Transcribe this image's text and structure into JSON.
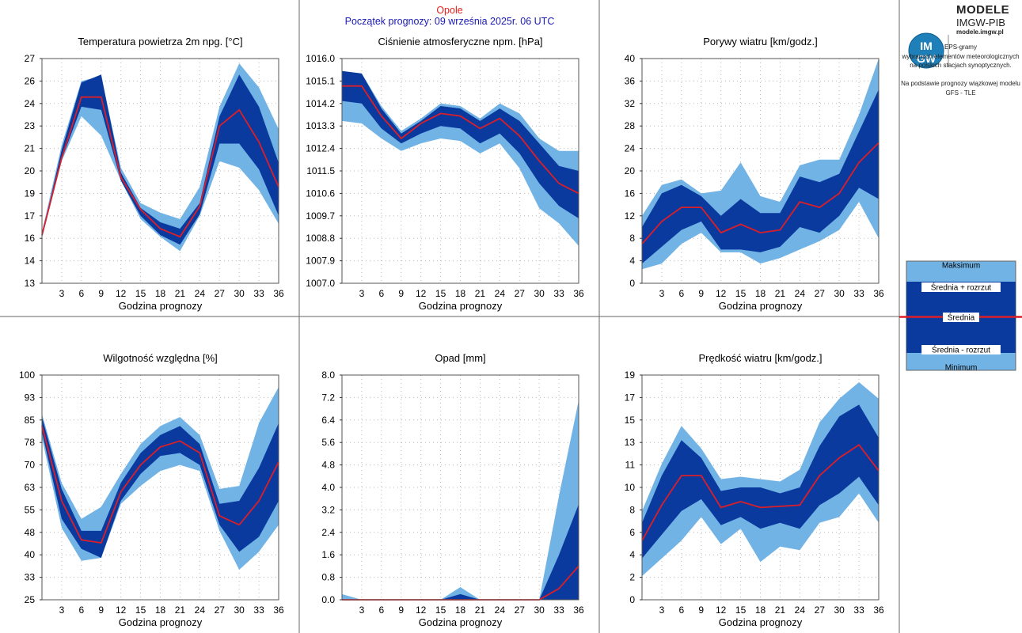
{
  "header": {
    "station": "Opole",
    "forecast_start": "Początek prognozy: 09 września 2025r. 06 UTC"
  },
  "logo": {
    "line1": "MODELE",
    "line2": "IMGW-PIB",
    "line3": "modele.imgw.pl",
    "badge_top": "IM",
    "badge_bottom": "GW"
  },
  "description": {
    "lines": [
      "EPS-gramy",
      "wybranych elementów meteorologicznych",
      "na polskich stacjach  synoptycznych.",
      "",
      "Na podstawie prognozy wiązkowej modelu",
      "GFS - TLE"
    ]
  },
  "legend": {
    "max": "Maksimum",
    "mean_plus": "Średnia + rozrzut",
    "mean": "Średnia",
    "mean_minus": "Średnia - rozrzut",
    "min": "Minimum"
  },
  "colors": {
    "outer_band": "#72b3e6",
    "inner_band": "#0a3a9e",
    "mean_line": "#dc1e28",
    "grid": "#b8b8b8",
    "frame": "#555555"
  },
  "chart_data": [
    {
      "type": "area",
      "title": "Temperatura powietrza 2m npg. [°C]",
      "xlabel": "Godzina prognozy",
      "x": [
        0,
        3,
        6,
        9,
        12,
        15,
        18,
        21,
        24,
        27,
        30,
        33,
        36
      ],
      "x_ticks": [
        "3",
        "6",
        "9",
        "12",
        "15",
        "18",
        "21",
        "24",
        "27",
        "30",
        "33",
        "36"
      ],
      "ylim": [
        13,
        27
      ],
      "y_ticks": [
        "13",
        "14",
        "16",
        "17",
        "19",
        "20",
        "21",
        "23",
        "24",
        "26",
        "27"
      ],
      "y_tick_values": [
        13,
        14.4,
        15.8,
        17.2,
        18.6,
        20,
        21.4,
        22.8,
        24.2,
        25.6,
        27
      ],
      "series": [
        {
          "name": "Maksimum",
          "values": [
            16.2,
            21.6,
            25.6,
            25.9,
            20.2,
            18.0,
            17.4,
            17.0,
            19.0,
            24.0,
            26.7,
            25.2,
            22.6
          ]
        },
        {
          "name": "Średnia + rozrzut",
          "values": [
            16.0,
            21.3,
            25.5,
            26.0,
            19.9,
            17.7,
            16.8,
            16.4,
            18.0,
            23.4,
            26.0,
            24.0,
            20.5
          ]
        },
        {
          "name": "Średnia",
          "values": [
            16.0,
            20.8,
            24.6,
            24.6,
            19.6,
            17.6,
            16.4,
            15.9,
            17.8,
            22.8,
            23.8,
            21.8,
            19.0
          ]
        },
        {
          "name": "Średnia - rozrzut",
          "values": [
            16.0,
            20.7,
            24.0,
            23.8,
            19.4,
            17.2,
            16.0,
            15.4,
            17.3,
            21.7,
            21.7,
            20.1,
            17.2
          ]
        },
        {
          "name": "Minimum",
          "values": [
            15.8,
            20.6,
            23.4,
            22.2,
            19.4,
            17.0,
            15.9,
            15.0,
            17.2,
            20.6,
            20.2,
            18.8,
            16.7
          ]
        }
      ]
    },
    {
      "type": "area",
      "title": "Ciśnienie atmosferyczne npm. [hPa]",
      "xlabel": "Godzina prognozy",
      "x": [
        0,
        3,
        6,
        9,
        12,
        15,
        18,
        21,
        24,
        27,
        30,
        33,
        36
      ],
      "x_ticks": [
        "3",
        "6",
        "9",
        "12",
        "15",
        "18",
        "21",
        "24",
        "27",
        "30",
        "33",
        "36"
      ],
      "ylim": [
        1007.0,
        1016.0
      ],
      "y_ticks": [
        "1007.0",
        "1007.9",
        "1008.8",
        "1009.7",
        "1010.6",
        "1011.5",
        "1012.4",
        "1013.3",
        "1014.2",
        "1015.1",
        "1016.0"
      ],
      "y_tick_values": [
        1007.0,
        1007.9,
        1008.8,
        1009.7,
        1010.6,
        1011.5,
        1012.4,
        1013.3,
        1014.2,
        1015.1,
        1016.0
      ],
      "series": [
        {
          "name": "Maksimum",
          "values": [
            1015.5,
            1015.4,
            1014.1,
            1013.1,
            1013.6,
            1014.2,
            1014.1,
            1013.6,
            1014.2,
            1013.8,
            1012.8,
            1012.3,
            1012.3
          ]
        },
        {
          "name": "Średnia + rozrzut",
          "values": [
            1015.5,
            1015.4,
            1014.0,
            1013.0,
            1013.5,
            1014.1,
            1014.0,
            1013.5,
            1014.0,
            1013.5,
            1012.6,
            1011.7,
            1011.5
          ]
        },
        {
          "name": "Średnia",
          "values": [
            1014.9,
            1014.9,
            1013.7,
            1012.8,
            1013.4,
            1013.8,
            1013.7,
            1013.2,
            1013.6,
            1012.9,
            1011.9,
            1011.0,
            1010.6
          ]
        },
        {
          "name": "Średnia - rozrzut",
          "values": [
            1014.3,
            1014.2,
            1013.2,
            1012.6,
            1013.0,
            1013.3,
            1013.2,
            1012.6,
            1013.0,
            1012.2,
            1011.0,
            1010.1,
            1009.6
          ]
        },
        {
          "name": "Minimum",
          "values": [
            1013.5,
            1013.4,
            1012.8,
            1012.3,
            1012.6,
            1012.8,
            1012.7,
            1012.2,
            1012.6,
            1011.6,
            1010.0,
            1009.4,
            1008.5
          ]
        }
      ]
    },
    {
      "type": "area",
      "title": "Porywy wiatru [km/godz.]",
      "xlabel": "Godzina prognozy",
      "x": [
        0,
        3,
        6,
        9,
        12,
        15,
        18,
        21,
        24,
        27,
        30,
        33,
        36
      ],
      "x_ticks": [
        "3",
        "6",
        "9",
        "12",
        "15",
        "18",
        "21",
        "24",
        "27",
        "30",
        "33",
        "36"
      ],
      "ylim": [
        0,
        40
      ],
      "y_ticks": [
        "0",
        "4",
        "8",
        "12",
        "16",
        "20",
        "24",
        "28",
        "32",
        "36",
        "40"
      ],
      "y_tick_values": [
        0,
        4,
        8,
        12,
        16,
        20,
        24,
        28,
        32,
        36,
        40
      ],
      "series": [
        {
          "name": "Maksimum",
          "values": [
            12.0,
            17.5,
            18.5,
            16.0,
            16.5,
            21.5,
            15.5,
            14.5,
            21.0,
            22.0,
            22.0,
            30.0,
            40.0
          ]
        },
        {
          "name": "Średnia + rozrzut",
          "values": [
            10.0,
            16.0,
            17.5,
            15.5,
            12.0,
            15.0,
            12.5,
            12.5,
            19.0,
            18.0,
            19.5,
            27.0,
            34.5
          ]
        },
        {
          "name": "Średnia",
          "values": [
            7.0,
            11.0,
            13.5,
            13.5,
            9.0,
            10.5,
            9.0,
            9.5,
            14.5,
            13.5,
            16.0,
            21.5,
            25.0
          ]
        },
        {
          "name": "Średnia - rozrzut",
          "values": [
            3.5,
            6.5,
            9.5,
            11.0,
            6.0,
            6.0,
            5.5,
            6.5,
            10.0,
            9.0,
            12.0,
            17.0,
            15.0
          ]
        },
        {
          "name": "Minimum",
          "values": [
            2.5,
            3.5,
            7.0,
            9.0,
            5.5,
            5.5,
            3.5,
            4.5,
            6.0,
            7.5,
            9.5,
            14.5,
            8.0
          ]
        }
      ]
    },
    {
      "type": "area",
      "title": "Wilgotność względna [%]",
      "xlabel": "Godzina prognozy",
      "x": [
        0,
        3,
        6,
        9,
        12,
        15,
        18,
        21,
        24,
        27,
        30,
        33,
        36
      ],
      "x_ticks": [
        "3",
        "6",
        "9",
        "12",
        "15",
        "18",
        "21",
        "24",
        "27",
        "30",
        "33",
        "36"
      ],
      "ylim": [
        25,
        100
      ],
      "y_ticks": [
        "25",
        "33",
        "40",
        "48",
        "55",
        "63",
        "70",
        "78",
        "85",
        "93",
        "100"
      ],
      "y_tick_values": [
        25,
        32.5,
        40,
        47.5,
        55,
        62.5,
        70,
        77.5,
        85,
        92.5,
        100
      ],
      "series": [
        {
          "name": "Maksimum",
          "values": [
            87,
            64,
            52,
            56,
            67,
            77,
            83,
            86,
            80,
            62,
            63,
            84,
            96
          ]
        },
        {
          "name": "Średnia + rozrzut",
          "values": [
            86,
            62,
            48,
            48,
            64,
            74,
            80,
            83,
            77,
            57,
            58,
            69,
            84
          ]
        },
        {
          "name": "Średnia",
          "values": [
            83,
            58,
            45,
            44,
            61,
            70,
            76,
            78,
            74,
            53,
            50,
            58,
            71
          ]
        },
        {
          "name": "Średnia - rozrzut",
          "values": [
            81,
            52,
            42,
            39,
            58,
            67,
            73,
            74,
            70,
            50,
            41,
            46,
            58
          ]
        },
        {
          "name": "Minimum",
          "values": [
            79,
            49,
            38,
            39,
            57,
            63,
            68,
            70,
            68,
            48,
            35,
            41,
            50
          ]
        }
      ]
    },
    {
      "type": "area",
      "title": "Opad [mm]",
      "xlabel": "Godzina prognozy",
      "x": [
        0,
        3,
        6,
        9,
        12,
        15,
        18,
        21,
        24,
        27,
        30,
        33,
        36
      ],
      "x_ticks": [
        "3",
        "6",
        "9",
        "12",
        "15",
        "18",
        "21",
        "24",
        "27",
        "30",
        "33",
        "36"
      ],
      "ylim": [
        0,
        8
      ],
      "y_ticks": [
        "0.0",
        "0.8",
        "1.6",
        "2.4",
        "3.2",
        "4.0",
        "4.8",
        "5.6",
        "6.4",
        "7.2",
        "8.0"
      ],
      "y_tick_values": [
        0,
        0.8,
        1.6,
        2.4,
        3.2,
        4.0,
        4.8,
        5.6,
        6.4,
        7.2,
        8.0
      ],
      "series": [
        {
          "name": "Maksimum",
          "values": [
            0.2,
            0,
            0,
            0,
            0,
            0,
            0.45,
            0,
            0,
            0,
            0,
            3.7,
            7.1
          ]
        },
        {
          "name": "Średnia + rozrzut",
          "values": [
            0.02,
            0,
            0,
            0,
            0,
            0,
            0.2,
            0,
            0,
            0,
            0,
            1.6,
            3.4
          ]
        },
        {
          "name": "Średnia",
          "values": [
            0,
            0,
            0,
            0,
            0,
            0,
            0,
            0,
            0,
            0,
            0,
            0.4,
            1.2
          ]
        },
        {
          "name": "Średnia - rozrzut",
          "values": [
            0,
            0,
            0,
            0,
            0,
            0,
            0,
            0,
            0,
            0,
            0,
            0,
            0
          ]
        },
        {
          "name": "Minimum",
          "values": [
            0,
            0,
            0,
            0,
            0,
            0,
            0,
            0,
            0,
            0,
            0,
            0,
            0
          ]
        }
      ]
    },
    {
      "type": "area",
      "title": "Prędkość wiatru [km/godz.]",
      "xlabel": "Godzina prognozy",
      "x": [
        0,
        3,
        6,
        9,
        12,
        15,
        18,
        21,
        24,
        27,
        30,
        33,
        36
      ],
      "x_ticks": [
        "3",
        "6",
        "9",
        "12",
        "15",
        "18",
        "21",
        "24",
        "27",
        "30",
        "33",
        "36"
      ],
      "ylim": [
        0,
        19
      ],
      "y_ticks": [
        "0",
        "2",
        "4",
        "6",
        "8",
        "10",
        "11",
        "13",
        "15",
        "17",
        "19"
      ],
      "y_tick_values": [
        0,
        1.9,
        3.8,
        5.7,
        7.6,
        9.5,
        11.4,
        13.3,
        15.2,
        17.1,
        19
      ],
      "series": [
        {
          "name": "Maksimum",
          "values": [
            7.5,
            11.5,
            14.7,
            12.8,
            10.2,
            10.4,
            10.2,
            10.0,
            11.0,
            15.0,
            17.0,
            18.4,
            17.0
          ]
        },
        {
          "name": "Średnia + rozrzut",
          "values": [
            6.5,
            10.5,
            13.5,
            12.0,
            9.2,
            9.5,
            9.5,
            9.0,
            9.5,
            13.0,
            15.5,
            16.5,
            13.7
          ]
        },
        {
          "name": "Średnia",
          "values": [
            5.0,
            8.0,
            10.5,
            10.5,
            7.8,
            8.3,
            7.8,
            7.9,
            8.0,
            10.5,
            12.0,
            13.1,
            10.9
          ]
        },
        {
          "name": "Średnia - rozrzut",
          "values": [
            3.5,
            5.5,
            7.5,
            8.5,
            6.3,
            7.0,
            6.0,
            6.5,
            6.0,
            8.0,
            9.0,
            10.4,
            8.0
          ]
        },
        {
          "name": "Minimum",
          "values": [
            2.0,
            3.5,
            5.0,
            7.0,
            4.7,
            6.0,
            3.2,
            4.5,
            4.2,
            6.5,
            7.0,
            9.0,
            6.5
          ]
        }
      ]
    }
  ]
}
